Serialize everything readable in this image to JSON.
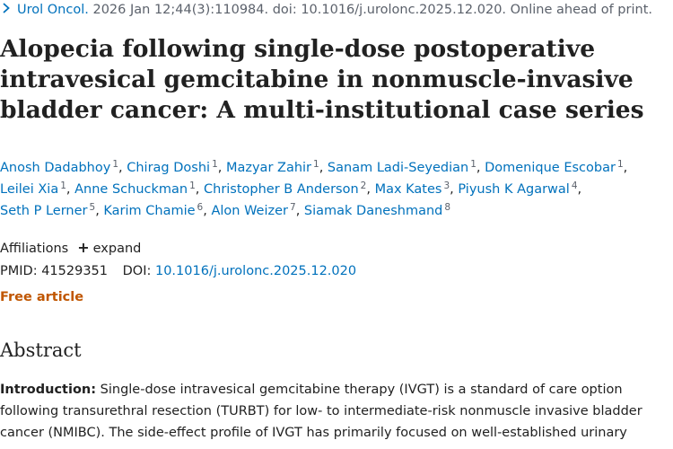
{
  "citation": {
    "journal": "Urol Oncol.",
    "details": "2026 Jan 12;44(3):110984. doi: 10.1016/j.urolonc.2025.12.020. Online ahead of print."
  },
  "title": "Alopecia following single-dose postoperative intravesical gemcitabine in nonmuscle-invasive bladder cancer: A multi-institutional case series",
  "authors": [
    {
      "name": "Anosh Dadabhoy",
      "sup": "1"
    },
    {
      "name": "Chirag Doshi",
      "sup": "1"
    },
    {
      "name": "Mazyar Zahir",
      "sup": "1"
    },
    {
      "name": "Sanam Ladi-Seyedian",
      "sup": "1"
    },
    {
      "name": "Domenique Escobar",
      "sup": "1"
    },
    {
      "name": "Leilei Xia",
      "sup": "1"
    },
    {
      "name": "Anne Schuckman",
      "sup": "1"
    },
    {
      "name": "Christopher B Anderson",
      "sup": "2"
    },
    {
      "name": "Max Kates",
      "sup": "3"
    },
    {
      "name": "Piyush K Agarwal",
      "sup": "4"
    },
    {
      "name": "Seth P Lerner",
      "sup": "5"
    },
    {
      "name": "Karim Chamie",
      "sup": "6"
    },
    {
      "name": "Alon Weizer",
      "sup": "7"
    },
    {
      "name": "Siamak Daneshmand",
      "sup": "8"
    }
  ],
  "affiliations": {
    "label": "Affiliations",
    "toggle_symbol": "+",
    "toggle_label": "expand"
  },
  "ids": {
    "pmid_label": "PMID:",
    "pmid": "41529351",
    "doi_label": "DOI:",
    "doi": "10.1016/j.urolonc.2025.12.020"
  },
  "free_article": "Free article",
  "abstract": {
    "heading": "Abstract",
    "intro_label": "Introduction:",
    "intro_text": "Single-dose intravesical gemcitabine therapy (IVGT) is a standard of care option following transurethral resection (TURBT) for low- to intermediate-risk nonmuscle invasive bladder cancer (NMIBC). The side-effect profile of IVGT has primarily focused on well-established urinary"
  },
  "colors": {
    "link": "#0071bc",
    "free_article": "#c05600",
    "text": "#212121",
    "muted": "#5b616b"
  },
  "icons": {
    "journal_expand": "chevron-right-icon"
  }
}
